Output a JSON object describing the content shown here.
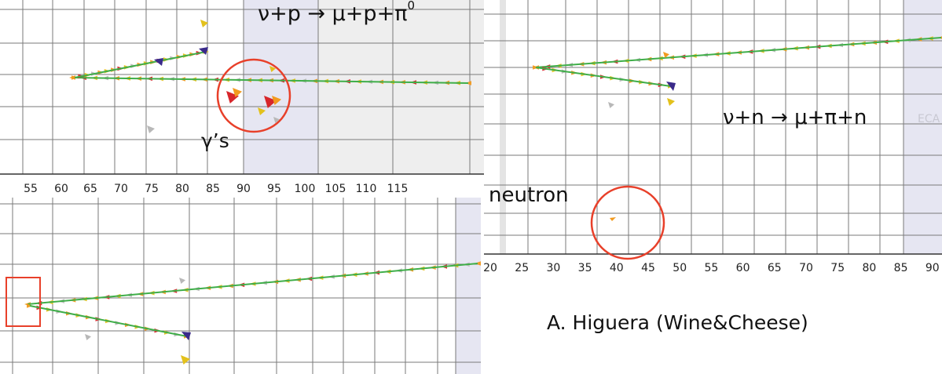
{
  "panels": {
    "top_left": {
      "reaction": "ν+p → μ+p+π",
      "reaction_superscript": "0",
      "annotation": "γ’s",
      "x_ticks": [
        "55",
        "60",
        "65",
        "70",
        "75",
        "80",
        "85",
        "90",
        "95",
        "100",
        "105",
        "110",
        "115"
      ]
    },
    "right": {
      "reaction": "ν+n → μ+π+n",
      "annotation": "neutron",
      "region_label": "ECA",
      "x_ticks": [
        "20",
        "25",
        "30",
        "35",
        "40",
        "45",
        "50",
        "55",
        "60",
        "65",
        "70",
        "75",
        "80",
        "85",
        "90"
      ]
    },
    "bottom_left": {}
  },
  "credit": "A. Higuera (Wine&Cheese)",
  "colors": {
    "grid": "#7a7a7a",
    "shaded_region": "#e6e6f2",
    "shaded_region_alt": "#eeeeee",
    "highlight_circle": "#e8402a",
    "highlight_box": "#e8402a",
    "track_green": "#3fae49",
    "hit_orange": "#f29a1f",
    "hit_red": "#d7262b",
    "hit_yellow": "#e3c11c",
    "hit_gray": "#b8b8b8",
    "hit_purple": "#3a2a8a"
  }
}
